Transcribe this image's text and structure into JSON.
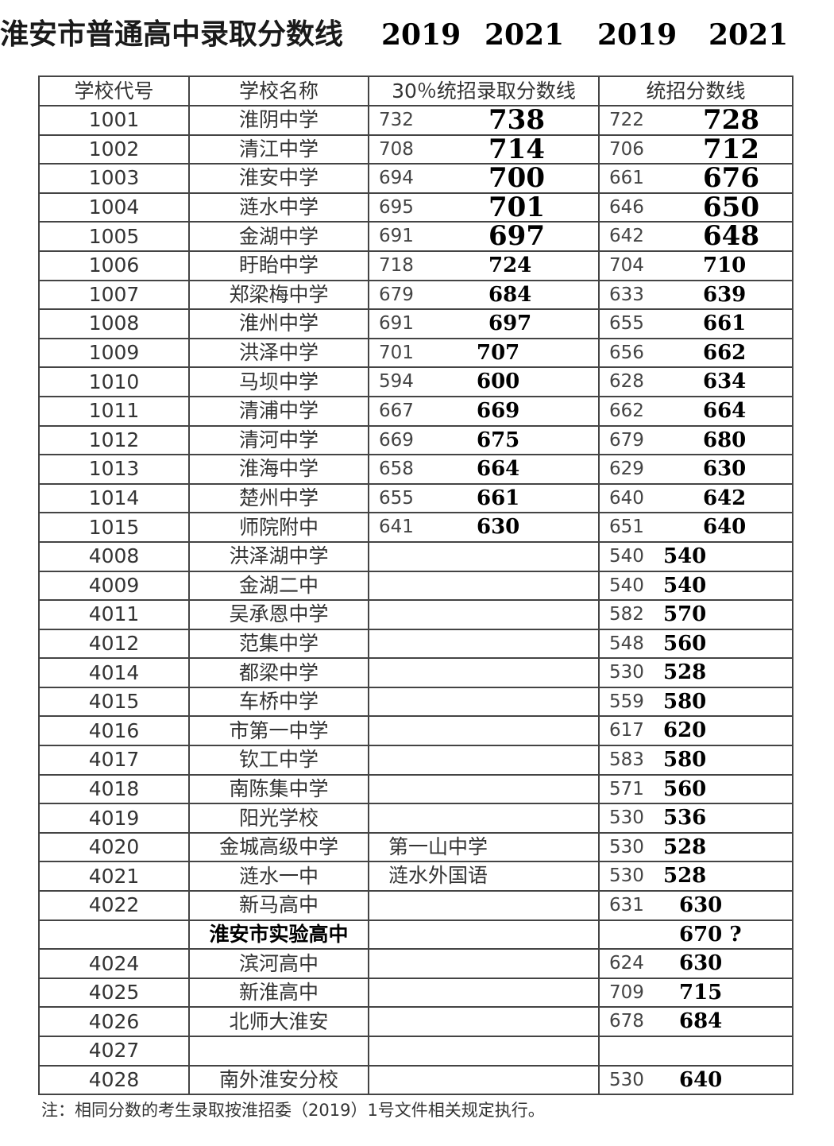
{
  "title": {
    "text": "淮安市普通高中录取分数线",
    "years": [
      "2019",
      "2021",
      "2019",
      "2021"
    ]
  },
  "headers": [
    "学校代号",
    "学校名称",
    "30％统招录取分数线",
    "统招分数线"
  ],
  "rows": [
    {
      "code": "1001",
      "name": "淮阴中学",
      "a19": "732",
      "a21": "738",
      "b19": "722",
      "b21": "728"
    },
    {
      "code": "1002",
      "name": "清江中学",
      "a19": "708",
      "a21": "714",
      "b19": "706",
      "b21": "712"
    },
    {
      "code": "1003",
      "name": "淮安中学",
      "a19": "694",
      "a21": "700",
      "b19": "661",
      "b21": "676"
    },
    {
      "code": "1004",
      "name": "涟水中学",
      "a19": "695",
      "a21": "701",
      "b19": "646",
      "b21": "650"
    },
    {
      "code": "1005",
      "name": "金湖中学",
      "a19": "691",
      "a21": "697",
      "b19": "642",
      "b21": "648"
    },
    {
      "code": "1006",
      "name": "盱眙中学",
      "a19": "718",
      "a21": "724",
      "b19": "704",
      "b21": "710"
    },
    {
      "code": "1007",
      "name": "郑梁梅中学",
      "a19": "679",
      "a21": "684",
      "b19": "633",
      "b21": "639"
    },
    {
      "code": "1008",
      "name": "淮州中学",
      "a19": "691",
      "a21": "697",
      "b19": "655",
      "b21": "661"
    },
    {
      "code": "1009",
      "name": "洪泽中学",
      "a19": "701",
      "a21": "707",
      "b19": "656",
      "b21": "662"
    },
    {
      "code": "1010",
      "name": "马坝中学",
      "a19": "594",
      "a21": "600",
      "b19": "628",
      "b21": "634"
    },
    {
      "code": "1011",
      "name": "清浦中学",
      "a19": "667",
      "a21": "669",
      "b19": "662",
      "b21": "664"
    },
    {
      "code": "1012",
      "name": "清河中学",
      "a19": "669",
      "a21": "675",
      "b19": "679",
      "b21": "680"
    },
    {
      "code": "1013",
      "name": "淮海中学",
      "a19": "658",
      "a21": "664",
      "b19": "629",
      "b21": "630"
    },
    {
      "code": "1014",
      "name": "楚州中学",
      "a19": "655",
      "a21": "661",
      "b19": "640",
      "b21": "642"
    },
    {
      "code": "1015",
      "name": "师院附中",
      "a19": "641",
      "a21": "630",
      "b19": "651",
      "b21": "640"
    },
    {
      "code": "4008",
      "name": "洪泽湖中学",
      "b19": "540",
      "b21": "540"
    },
    {
      "code": "4009",
      "name": "金湖二中",
      "b19": "540",
      "b21": "540"
    },
    {
      "code": "4011",
      "name": "吴承恩中学",
      "b19": "582",
      "b21": "570"
    },
    {
      "code": "4012",
      "name": "范集中学",
      "b19": "548",
      "b21": "560"
    },
    {
      "code": "4014",
      "name": "都梁中学",
      "b19": "530",
      "b21": "528"
    },
    {
      "code": "4015",
      "name": "车桥中学",
      "b19": "559",
      "b21": "580"
    },
    {
      "code": "4016",
      "name": "市第一中学",
      "b19": "617",
      "b21": "620"
    },
    {
      "code": "4017",
      "name": "钦工中学",
      "b19": "583",
      "b21": "580"
    },
    {
      "code": "4018",
      "name": "南陈集中学",
      "b19": "571",
      "b21": "560"
    },
    {
      "code": "4019",
      "name": "阳光学校",
      "b19": "530",
      "b21": "536"
    },
    {
      "code": "4020",
      "name": "金城高级中学",
      "extra": "第一山中学",
      "b19": "530",
      "b21": "528"
    },
    {
      "code": "4021",
      "name": "涟水一中",
      "extra": "涟水外国语",
      "b19": "530",
      "b21": "528"
    },
    {
      "code": "4022",
      "name": "新马高中",
      "b19": "631",
      "b21": "630"
    },
    {
      "code": "",
      "name": "淮安市实验高中",
      "bold": true,
      "b21": "670 ?"
    },
    {
      "code": "4024",
      "name": "滨河高中",
      "b19": "624",
      "b21": "630"
    },
    {
      "code": "4025",
      "name": "新淮高中",
      "b19": "709",
      "b21": "715"
    },
    {
      "code": "4026",
      "name": "北师大淮安",
      "b19": "678",
      "b21": "684"
    },
    {
      "code": "4027",
      "name": ""
    },
    {
      "code": "4028",
      "name": "南外淮安分校",
      "b19": "530",
      "b21": "640"
    }
  ],
  "note": "注：相同分数的考生录取按淮招委（2019）1号文件相关规定执行。"
}
